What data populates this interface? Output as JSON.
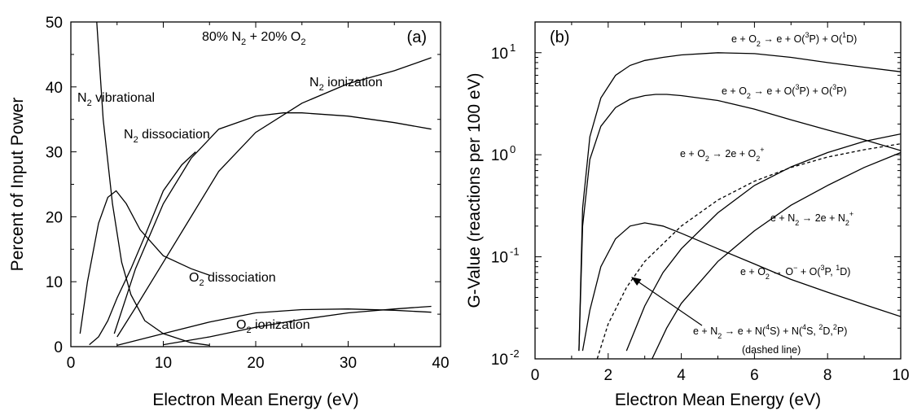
{
  "chart_data": [
    {
      "panel": "(a)",
      "type": "line",
      "title": "80% N2 + 20% O2",
      "xlabel": "Electron Mean Energy (eV)",
      "ylabel": "Percent of Input Power",
      "xlim": [
        0,
        40
      ],
      "ylim": [
        0,
        50
      ],
      "xticks": [
        "0",
        "10",
        "20",
        "30",
        "40"
      ],
      "yticks": [
        "0",
        "10",
        "20",
        "30",
        "40",
        "50"
      ],
      "grid": false,
      "series": [
        {
          "name": "N2 vibrational",
          "x": [
            2.8,
            3.5,
            4.5,
            5.5,
            6.5,
            8,
            10,
            13,
            15
          ],
          "y": [
            50,
            35,
            22,
            13,
            8,
            4,
            2,
            0.6,
            0.2
          ]
        },
        {
          "name": "N2 dissociation",
          "x": [
            2,
            3,
            4,
            5,
            6.5,
            8,
            10,
            12,
            13.5
          ],
          "y": [
            0.3,
            1.5,
            4,
            7.5,
            12,
            17,
            24,
            28,
            30
          ]
        },
        {
          "name": "N2 ionization",
          "x": [
            5,
            7,
            10,
            13,
            16,
            20,
            25,
            30,
            35,
            39
          ],
          "y": [
            1.5,
            6,
            13,
            20,
            27,
            33,
            37.5,
            40.5,
            42.5,
            44.5
          ]
        },
        {
          "name": "",
          "x": [
            1,
            1.8,
            3,
            4,
            4.9,
            6,
            7.5,
            10,
            13,
            15
          ],
          "y": [
            2,
            10,
            19,
            23,
            24,
            22,
            18,
            14,
            12,
            11
          ]
        },
        {
          "name": "",
          "x": [
            4.7,
            7,
            10,
            13,
            16,
            20,
            23,
            25,
            30,
            35,
            39
          ],
          "y": [
            2,
            12,
            22,
            29,
            33.5,
            35.5,
            36,
            36,
            35.5,
            34.5,
            33.5
          ]
        },
        {
          "name": "O2 dissociation",
          "x": [
            5,
            10,
            15,
            20,
            25,
            30,
            35,
            39
          ],
          "y": [
            0.2,
            2,
            3.8,
            5.2,
            5.7,
            5.8,
            5.6,
            5.3
          ]
        },
        {
          "name": "O2 ionization",
          "x": [
            10,
            15,
            20,
            25,
            30,
            35,
            39
          ],
          "y": [
            0.3,
            1.5,
            3,
            4.2,
            5.2,
            5.8,
            6.2
          ]
        }
      ],
      "annotations": [
        {
          "text": "N",
          "sub": "2",
          "rest": " vibrational"
        },
        {
          "text": "N",
          "sub": "2",
          "rest": " dissociation"
        },
        {
          "text": "N",
          "sub": "2",
          "rest": " ionization"
        },
        {
          "text": "O",
          "sub": "2",
          "rest": " dissociation"
        },
        {
          "text": "O",
          "sub": "2",
          "rest": " ionization"
        }
      ],
      "composition": {
        "a": "80% N",
        "b": "2",
        "c": " + 20% O",
        "d": "2"
      }
    },
    {
      "panel": "(b)",
      "type": "line",
      "xlabel": "Electron Mean Energy (eV)",
      "ylabel": "G-Value (reactions per 100 eV)",
      "xlim": [
        0,
        10
      ],
      "ylim": [
        0.01,
        20
      ],
      "yscale": "log",
      "xticks": [
        "0",
        "2",
        "4",
        "6",
        "8",
        "10"
      ],
      "yticks": [
        {
          "base": "10",
          "exp": "-2"
        },
        {
          "base": "10",
          "exp": "-1"
        },
        {
          "base": "10",
          "exp": "0"
        },
        {
          "base": "10",
          "exp": "1"
        }
      ],
      "grid": false,
      "series": [
        {
          "name": "e + O2 -> e + O(3P) + O(1D)",
          "x": [
            1.2,
            1.3,
            1.5,
            1.8,
            2.2,
            2.6,
            3,
            3.5,
            4,
            5,
            6,
            7,
            8,
            9,
            10
          ],
          "y": [
            0.012,
            0.3,
            1.5,
            3.6,
            6,
            7.5,
            8.4,
            9,
            9.5,
            10,
            9.8,
            9,
            8,
            7.2,
            6.5
          ]
        },
        {
          "name": "e + O2 -> e + O(3P) + O(3P)",
          "x": [
            1.2,
            1.3,
            1.5,
            1.8,
            2.2,
            2.6,
            3,
            3.3,
            3.6,
            4,
            5,
            6,
            7,
            8,
            9,
            10
          ],
          "y": [
            0.012,
            0.2,
            0.9,
            1.9,
            2.9,
            3.5,
            3.8,
            3.9,
            3.9,
            3.8,
            3.4,
            2.8,
            2.2,
            1.75,
            1.4,
            1.1
          ]
        },
        {
          "name": "e + O2 -> O- + O(3P, 1D)",
          "x": [
            1.3,
            1.5,
            1.8,
            2.2,
            2.6,
            3,
            3.5,
            4,
            5,
            6,
            7,
            8,
            9,
            10
          ],
          "y": [
            0.012,
            0.03,
            0.08,
            0.15,
            0.2,
            0.215,
            0.2,
            0.17,
            0.12,
            0.085,
            0.06,
            0.045,
            0.034,
            0.026
          ]
        },
        {
          "name": "e + O2 -> 2e + O2+",
          "x": [
            2.5,
            3,
            3.5,
            4,
            5,
            6,
            7,
            8,
            9,
            10
          ],
          "y": [
            0.012,
            0.033,
            0.07,
            0.12,
            0.27,
            0.5,
            0.76,
            1.05,
            1.35,
            1.6
          ]
        },
        {
          "name": "e + N2 -> e + N(4S) + N(4S, 2D, 2P) (dashed line)",
          "dashed": true,
          "x": [
            1.7,
            2,
            2.5,
            3,
            4,
            5,
            6,
            7,
            8,
            9,
            10
          ],
          "y": [
            0.01,
            0.022,
            0.05,
            0.09,
            0.2,
            0.36,
            0.55,
            0.75,
            0.95,
            1.12,
            1.28
          ]
        },
        {
          "name": "e + N2 -> 2e + N2+",
          "x": [
            3.2,
            3.6,
            4,
            5,
            6,
            7,
            8,
            9,
            10
          ],
          "y": [
            0.01,
            0.02,
            0.035,
            0.09,
            0.18,
            0.32,
            0.5,
            0.75,
            1.05
          ]
        }
      ],
      "reaction_labels": [
        {
          "parts": [
            "e + O",
            "_2",
            " → e + O(",
            "^3",
            "P) + O(",
            "^1",
            "D)"
          ]
        },
        {
          "parts": [
            "e + O",
            "_2",
            " → e + O(",
            "^3",
            "P) + O(",
            "^3",
            "P)"
          ]
        },
        {
          "parts": [
            "e + O",
            "_2",
            " → 2e + O",
            "_2",
            "^+"
          ]
        },
        {
          "parts": [
            "e + N",
            "_2",
            " → 2e + N",
            "_2",
            "^+"
          ]
        },
        {
          "parts": [
            "e + O",
            "_2",
            " → O",
            "^−",
            " + O(",
            "^3",
            "P, ",
            "^1",
            "D)"
          ]
        },
        {
          "parts": [
            "e + N",
            "_2",
            " → e + N(",
            "^4",
            "S) + N(",
            "^4",
            "S, ",
            "^2",
            "D,",
            "^2",
            "P)"
          ]
        }
      ],
      "dashed_note": "(dashed line)"
    }
  ]
}
